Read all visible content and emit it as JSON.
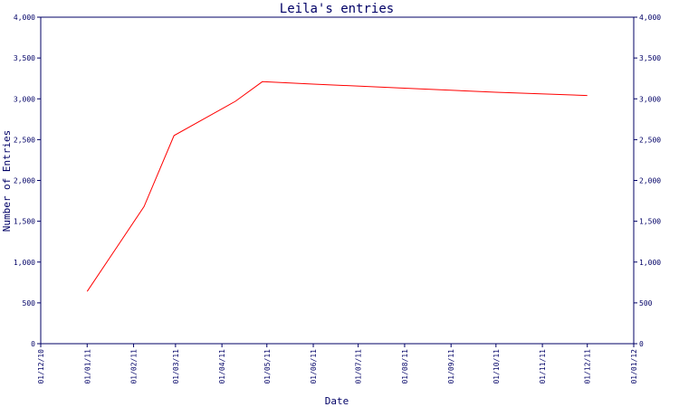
{
  "chart_data": {
    "type": "line",
    "title": "Leila's entries",
    "xlabel": "Date",
    "ylabel": "Number of Entries",
    "ylim": [
      0,
      4000
    ],
    "y_ticks": [
      0,
      500,
      1000,
      1500,
      2000,
      2500,
      3000,
      3500,
      4000
    ],
    "y_tick_labels": [
      "0",
      "500",
      "1,000",
      "1,500",
      "2,000",
      "2,500",
      "3,000",
      "3,500",
      "4,000"
    ],
    "x_range": [
      "2010-12-01",
      "2012-01-01"
    ],
    "x_ticks": [
      "2010-12-01",
      "2011-01-01",
      "2011-02-01",
      "2011-03-01",
      "2011-04-01",
      "2011-05-01",
      "2011-06-01",
      "2011-07-01",
      "2011-08-01",
      "2011-09-01",
      "2011-10-01",
      "2011-11-01",
      "2011-12-01",
      "2012-01-01"
    ],
    "x_tick_labels": [
      "01/12/10",
      "01/01/11",
      "01/02/11",
      "01/03/11",
      "01/04/11",
      "01/05/11",
      "01/06/11",
      "01/07/11",
      "01/08/11",
      "01/09/11",
      "01/10/11",
      "01/11/11",
      "01/12/11",
      "01/01/12"
    ],
    "right_axis_mirror": true,
    "grid": false,
    "series": [
      {
        "color": "#ff0000",
        "x": [
          "2011-01-01",
          "2011-02-08",
          "2011-02-28",
          "2011-04-10",
          "2011-04-28",
          "2011-06-01",
          "2011-08-01",
          "2011-10-01",
          "2011-12-01"
        ],
        "values": [
          640,
          1680,
          2550,
          2970,
          3210,
          3180,
          3130,
          3080,
          3040
        ]
      }
    ]
  },
  "colors": {
    "axis": "#000066",
    "series": "#ff0000",
    "background": "#ffffff"
  }
}
